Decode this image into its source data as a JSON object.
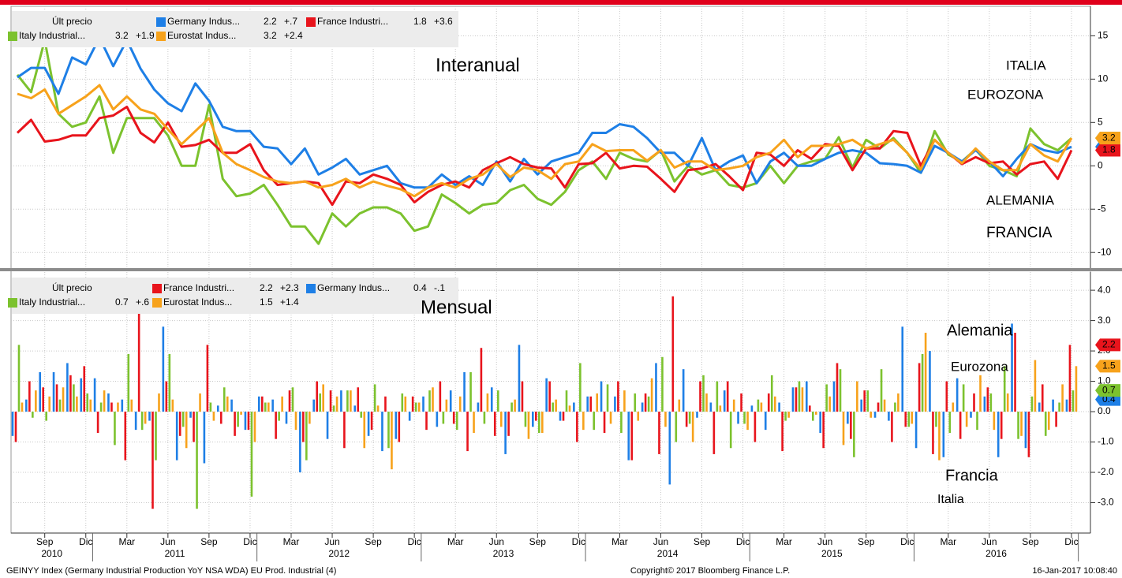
{
  "chart_data": [
    {
      "type": "line",
      "legend_header": "Últ precio",
      "x": [
        "2010-07",
        "2010-08",
        "2010-09",
        "2010-10",
        "2010-11",
        "2010-12",
        "2011-01",
        "2011-02",
        "2011-03",
        "2011-04",
        "2011-05",
        "2011-06",
        "2011-07",
        "2011-08",
        "2011-09",
        "2011-10",
        "2011-11",
        "2011-12",
        "2012-01",
        "2012-02",
        "2012-03",
        "2012-04",
        "2012-05",
        "2012-06",
        "2012-07",
        "2012-08",
        "2012-09",
        "2012-10",
        "2012-11",
        "2012-12",
        "2013-01",
        "2013-02",
        "2013-03",
        "2013-04",
        "2013-05",
        "2013-06",
        "2013-07",
        "2013-08",
        "2013-09",
        "2013-10",
        "2013-11",
        "2013-12",
        "2014-01",
        "2014-02",
        "2014-03",
        "2014-04",
        "2014-05",
        "2014-06",
        "2014-07",
        "2014-08",
        "2014-09",
        "2014-10",
        "2014-11",
        "2014-12",
        "2015-01",
        "2015-02",
        "2015-03",
        "2015-04",
        "2015-05",
        "2015-06",
        "2015-07",
        "2015-08",
        "2015-09",
        "2015-10",
        "2015-11",
        "2015-12",
        "2016-01",
        "2016-02",
        "2016-03",
        "2016-04",
        "2016-05",
        "2016-06",
        "2016-07",
        "2016-08",
        "2016-09",
        "2016-10",
        "2016-11",
        "2016-12"
      ],
      "series": [
        {
          "name": "Italy Industrial...",
          "color": "#7cc22e",
          "last": 3.2,
          "change": {
            "value": 1.9,
            "label": "+1.9"
          },
          "values": [
            10.5,
            8.5,
            14.5,
            6,
            4.5,
            5,
            8,
            1.5,
            5.5,
            5.5,
            5.5,
            3.5,
            0,
            0,
            7,
            -1.5,
            -3.5,
            -3.2,
            -2.2,
            -4.5,
            -7,
            -7,
            -9,
            -5.5,
            -7,
            -5.5,
            -4.8,
            -4.8,
            -5.5,
            -7.5,
            -7,
            -3.3,
            -4.3,
            -5.5,
            -4.5,
            -4.3,
            -2.8,
            -2.2,
            -3.8,
            -4.5,
            -3,
            -0.5,
            0.5,
            -1.5,
            1.5,
            0.8,
            0.5,
            1.8,
            -1.8,
            0,
            -1,
            -0.5,
            -2.2,
            -2.5,
            -2,
            0,
            -2,
            0,
            0.5,
            0.8,
            3.3,
            -0.2,
            3,
            2,
            3.2,
            1.5,
            -0.8,
            4,
            1.3,
            0.5,
            1.9,
            0,
            -0.5,
            -1.2,
            4.3,
            2.5,
            1.8,
            3.2
          ]
        },
        {
          "name": "Germany Indus...",
          "color": "#1e7fe6",
          "last": 2.2,
          "change": {
            "value": 0.7,
            "label": "+.7"
          },
          "values": [
            10.2,
            11.3,
            11.3,
            8.3,
            12.5,
            11.7,
            14.8,
            11.5,
            14.5,
            11.2,
            8.8,
            7.2,
            6.3,
            9.5,
            7.5,
            4.5,
            4,
            4,
            2.2,
            2,
            0.2,
            2,
            -1,
            -0.2,
            0.8,
            -1,
            -0.5,
            0,
            -2,
            -2.5,
            -2.5,
            -1,
            -2.2,
            -1.2,
            -2.2,
            0.5,
            -1.8,
            0.8,
            -1,
            0.5,
            1,
            1.5,
            3.8,
            3.8,
            4.8,
            4.5,
            3.2,
            1.5,
            1.5,
            0,
            3.2,
            -0.5,
            0.5,
            1.2,
            -2,
            0.5,
            1.5,
            0,
            0,
            0.8,
            1.5,
            1.8,
            1.5,
            0.3,
            0.2,
            0,
            -0.8,
            2.3,
            1.5,
            0.5,
            1.8,
            0.5,
            -1.2,
            0.8,
            2.5,
            1.8,
            1.5,
            2.2
          ]
        },
        {
          "name": "France Industri...",
          "color": "#e8141c",
          "last": 1.8,
          "change": {
            "value": 3.6,
            "label": "+3.6"
          },
          "values": [
            3.8,
            5.3,
            2.8,
            3,
            3.5,
            3.5,
            5.5,
            5.8,
            6.8,
            3.8,
            2.7,
            5,
            2.2,
            2.4,
            3,
            1.5,
            1.5,
            2.5,
            -0.5,
            -2.2,
            -2,
            -1.8,
            -2,
            -4.5,
            -1.8,
            -2,
            -1,
            -1.5,
            -2.2,
            -4.2,
            -3,
            -2.2,
            -1.8,
            -2.5,
            -0.5,
            0.3,
            1,
            0.2,
            -0.2,
            -0.3,
            -2.5,
            0.2,
            0.3,
            1.5,
            -0.3,
            0,
            -0.1,
            -1.5,
            -3,
            -0.5,
            -0.3,
            0.2,
            -1.2,
            -2.8,
            1.5,
            1.3,
            0,
            1.8,
            0.8,
            2.5,
            2.3,
            -0.5,
            2,
            2,
            4,
            3.8,
            0,
            3,
            1.5,
            0.2,
            1,
            0.3,
            0.5,
            -1,
            0.2,
            0.5,
            -1.5,
            1.8
          ]
        },
        {
          "name": "Eurostat Indus...",
          "color": "#f7a21b",
          "last": 3.2,
          "change": {
            "value": 2.4,
            "label": "+2.4"
          },
          "values": [
            8.3,
            7.8,
            8.8,
            6,
            7,
            8,
            9.3,
            6.5,
            8,
            6.5,
            6,
            4.2,
            2.5,
            4,
            5.5,
            1.5,
            0.2,
            -0.5,
            -1.3,
            -1.8,
            -2,
            -1.8,
            -2.5,
            -2.2,
            -1.5,
            -2.5,
            -1.8,
            -2.3,
            -2.7,
            -3.5,
            -2.5,
            -2,
            -2.5,
            -1.5,
            -1,
            0.2,
            -1.3,
            -0.2,
            -0.5,
            -1.5,
            0.2,
            0.5,
            2.5,
            1.7,
            1.8,
            1.8,
            0.6,
            1.8,
            -0.2,
            0.5,
            0.5,
            -0.5,
            -0.3,
            0,
            1,
            1.5,
            3,
            1,
            2.3,
            2.3,
            2.5,
            3,
            2,
            2.5,
            3,
            1.5,
            -0.4,
            3,
            1.5,
            0.3,
            2,
            0.5,
            -0.5,
            -0.5,
            2.5,
            1.2,
            0.5,
            3.2
          ]
        }
      ],
      "ylim": [
        -11.8,
        18.4
      ],
      "yticks": [
        -10,
        -5,
        0,
        5,
        10,
        15
      ],
      "grid": true,
      "annotations": [
        {
          "text": "Interanual",
          "color": "#000000"
        },
        {
          "text": "ITALIA",
          "color": "#4cb848"
        },
        {
          "text": "EUROZONA",
          "color": "#f7a21b"
        },
        {
          "text": "ALEMANIA",
          "color": "#7aa6e6"
        },
        {
          "text": "FRANCIA",
          "color": "#e8141c"
        }
      ]
    },
    {
      "type": "bar",
      "legend_header": "Últ precio",
      "x": [
        "2010-07",
        "2010-08",
        "2010-09",
        "2010-10",
        "2010-11",
        "2010-12",
        "2011-01",
        "2011-02",
        "2011-03",
        "2011-04",
        "2011-05",
        "2011-06",
        "2011-07",
        "2011-08",
        "2011-09",
        "2011-10",
        "2011-11",
        "2011-12",
        "2012-01",
        "2012-02",
        "2012-03",
        "2012-04",
        "2012-05",
        "2012-06",
        "2012-07",
        "2012-08",
        "2012-09",
        "2012-10",
        "2012-11",
        "2012-12",
        "2013-01",
        "2013-02",
        "2013-03",
        "2013-04",
        "2013-05",
        "2013-06",
        "2013-07",
        "2013-08",
        "2013-09",
        "2013-10",
        "2013-11",
        "2013-12",
        "2014-01",
        "2014-02",
        "2014-03",
        "2014-04",
        "2014-05",
        "2014-06",
        "2014-07",
        "2014-08",
        "2014-09",
        "2014-10",
        "2014-11",
        "2014-12",
        "2015-01",
        "2015-02",
        "2015-03",
        "2015-04",
        "2015-05",
        "2015-06",
        "2015-07",
        "2015-08",
        "2015-09",
        "2015-10",
        "2015-11",
        "2015-12",
        "2016-01",
        "2016-02",
        "2016-03",
        "2016-04",
        "2016-05",
        "2016-06",
        "2016-07",
        "2016-08",
        "2016-09",
        "2016-10",
        "2016-11",
        "2016-12"
      ],
      "series": [
        {
          "name": "France Industri...",
          "color": "#e8141c",
          "last": 2.2,
          "change": {
            "value": 2.3,
            "label": "+2.3"
          },
          "values": [
            -1.0,
            1.0,
            0.8,
            0.9,
            1.2,
            1.5,
            -0.7,
            0.3,
            -1.6,
            3.3,
            -3.2,
            1.0,
            -0.8,
            -1.0,
            2.2,
            -0.4,
            -0.8,
            -0.6,
            0.5,
            -0.9,
            0.7,
            -1.0,
            1.0,
            0.7,
            -1.2,
            0.8,
            -0.6,
            0.5,
            -1.0,
            0.5,
            -0.6,
            1.0,
            -0.4,
            -1.3,
            2.1,
            -0.8,
            -0.8,
            1.0,
            -0.3,
            1.0,
            -0.3,
            -1.0,
            0.5,
            -0.7,
            1.0,
            -1.6,
            0.6,
            -1.4,
            3.8,
            -0.5,
            1.0,
            -1.4,
            1.0,
            0.6,
            -1.0,
            0.6,
            -1.3,
            0.8,
            0.2,
            -1.2,
            1.6,
            -0.9,
            0.7,
            0.3,
            -1.0,
            -0.5,
            1.6,
            -1.4,
            1.0,
            -0.9,
            0.6,
            0.8,
            -0.9,
            2.6,
            -1.5,
            0.9,
            -0.5,
            2.2
          ]
        },
        {
          "name": "Germany Indus...",
          "color": "#1e7fe6",
          "last": 0.4,
          "change": {
            "value": -0.1,
            "label": "-.1"
          },
          "values": [
            -0.8,
            0.4,
            1.3,
            1.3,
            1.6,
            1.1,
            1.1,
            0.6,
            0.4,
            -0.6,
            -0.3,
            2.8,
            -1.6,
            -0.2,
            -1.7,
            0.2,
            0.4,
            -0.6,
            0.5,
            0.4,
            -0.4,
            -2.0,
            0.4,
            -0.9,
            0.7,
            0.2,
            -0.8,
            -1.3,
            -0.9,
            -0.3,
            0.5,
            -0.5,
            0.7,
            1.3,
            0.3,
            0.8,
            -1.4,
            2.2,
            -0.5,
            1.1,
            -0.3,
            0.3,
            0.5,
            1.0,
            0.5,
            -1.6,
            0.3,
            1.6,
            -2.4,
            1.4,
            -0.2,
            0.3,
            0.7,
            -0.4,
            0.2,
            -0.6,
            0.3,
            0.8,
            1.0,
            -0.7,
            1.0,
            -0.4,
            0.4,
            -0.2,
            -0.3,
            2.8,
            -1.2,
            2.0,
            -1.5,
            1.1,
            -0.2,
            0.5,
            -1.5,
            2.9,
            -1.2,
            0.3,
            0.4,
            0.4
          ]
        },
        {
          "name": "Italy Industrial...",
          "color": "#7cc22e",
          "last": 0.7,
          "change": {
            "value": 0.6,
            "label": "+.6"
          },
          "values": [
            2.2,
            -0.2,
            -0.3,
            0.4,
            0.9,
            0.6,
            0.3,
            -1.1,
            1.9,
            -0.6,
            -1.6,
            1.9,
            -0.5,
            -3.2,
            0.3,
            0.8,
            -0.5,
            -2.8,
            0.3,
            -0.3,
            0.8,
            -1.6,
            0.6,
            0.2,
            0.7,
            -0.2,
            0.9,
            -1.2,
            0.6,
            0.3,
            0.7,
            -0.4,
            -0.6,
            1.3,
            -0.4,
            0.7,
            0.3,
            -0.5,
            -0.7,
            0.3,
            0.7,
            1.6,
            -0.6,
            0.9,
            -0.7,
            0.6,
            0.5,
            1.8,
            -1.0,
            -0.4,
            1.2,
            1.0,
            -1.2,
            -0.4,
            0.4,
            1.2,
            -0.3,
            1.0,
            -0.3,
            0.9,
            1.4,
            -1.5,
            0.7,
            1.4,
            0.3,
            -0.5,
            1.9,
            -0.5,
            -0.7,
            0.9,
            -0.6,
            0.6,
            1.5,
            -0.9,
            0.5,
            -0.8,
            0.3,
            0.7
          ]
        },
        {
          "name": "Eurostat Indus...",
          "color": "#f7a21b",
          "last": 1.5,
          "change": {
            "value": 1.4,
            "label": "+1.4"
          },
          "values": [
            0.3,
            0.7,
            0.5,
            0.8,
            0.5,
            0.4,
            0.7,
            0.3,
            0.4,
            -0.4,
            0.6,
            0.4,
            -1.2,
            0.6,
            -0.3,
            0.5,
            -0.1,
            -1.0,
            0.3,
            0.5,
            -0.6,
            -0.4,
            0.9,
            0.5,
            0.7,
            -1.2,
            0.2,
            -1.9,
            0.5,
            0.3,
            0.8,
            0.4,
            0.5,
            -0.7,
            0.6,
            -0.5,
            0.4,
            -0.9,
            -0.7,
            0.4,
            0.2,
            -0.6,
            0.6,
            -0.4,
            0.7,
            -0.3,
            1.1,
            -0.5,
            0.4,
            -1.0,
            0.6,
            0.2,
            0.4,
            -0.6,
            0.3,
            0.5,
            -0.2,
            0.8,
            -0.1,
            0.5,
            -1.1,
            1.0,
            -0.2,
            0.4,
            0.6,
            -0.4,
            2.6,
            -1.6,
            0.3,
            -0.5,
            1.2,
            -0.6,
            0.6,
            -0.8,
            1.7,
            -0.6,
            0.9,
            1.5
          ]
        }
      ],
      "ylim": [
        -4.0,
        4.6
      ],
      "yticks": [
        {
          "value": -3,
          "label": "-3.0"
        },
        {
          "value": -2,
          "label": "-2.0"
        },
        {
          "value": -1,
          "label": "-1.0"
        },
        {
          "value": 0,
          "label": "0.0"
        },
        {
          "value": 1,
          "label": "1.0"
        },
        {
          "value": 2,
          "label": "2.0"
        },
        {
          "value": 3,
          "label": "3.0"
        },
        {
          "value": 4,
          "label": "4.0"
        }
      ],
      "grid": true,
      "xticks": [
        {
          "value": "2010-09",
          "label": "Sep"
        },
        {
          "value": "2010-12",
          "label": "Dic"
        },
        {
          "value": "2011-03",
          "label": "Mar"
        },
        {
          "value": "2011-06",
          "label": "Jun"
        },
        {
          "value": "2011-09",
          "label": "Sep"
        },
        {
          "value": "2011-12",
          "label": "Dic"
        },
        {
          "value": "2012-03",
          "label": "Mar"
        },
        {
          "value": "2012-06",
          "label": "Jun"
        },
        {
          "value": "2012-09",
          "label": "Sep"
        },
        {
          "value": "2012-12",
          "label": "Dic"
        },
        {
          "value": "2013-03",
          "label": "Mar"
        },
        {
          "value": "2013-06",
          "label": "Jun"
        },
        {
          "value": "2013-09",
          "label": "Sep"
        },
        {
          "value": "2013-12",
          "label": "Dic"
        },
        {
          "value": "2014-03",
          "label": "Mar"
        },
        {
          "value": "2014-06",
          "label": "Jun"
        },
        {
          "value": "2014-09",
          "label": "Sep"
        },
        {
          "value": "2014-12",
          "label": "Dic"
        },
        {
          "value": "2015-03",
          "label": "Mar"
        },
        {
          "value": "2015-06",
          "label": "Jun"
        },
        {
          "value": "2015-09",
          "label": "Sep"
        },
        {
          "value": "2015-12",
          "label": "Dic"
        },
        {
          "value": "2016-03",
          "label": "Mar"
        },
        {
          "value": "2016-06",
          "label": "Jun"
        },
        {
          "value": "2016-09",
          "label": "Sep"
        },
        {
          "value": "2016-12",
          "label": "Dic"
        }
      ],
      "year_labels": [
        2010,
        2011,
        2012,
        2013,
        2014,
        2015,
        2016
      ],
      "annotations": [
        {
          "text": "Mensual",
          "color": "#000000"
        },
        {
          "text": "Alemania",
          "color": "#5a5ac8"
        },
        {
          "text": "Eurozona",
          "color": "#f7a21b"
        },
        {
          "text": "Francia",
          "color": "#e8141c"
        },
        {
          "text": "Italia",
          "color": "#4cb848"
        }
      ]
    }
  ],
  "footer": {
    "left": "GEINYY Index (Germany Industrial Production YoY NSA WDA) EU Prod. Industrial (4)",
    "center": "Copyright© 2017 Bloomberg Finance L.P.",
    "right": "16-Jan-2017 10:08:40"
  }
}
